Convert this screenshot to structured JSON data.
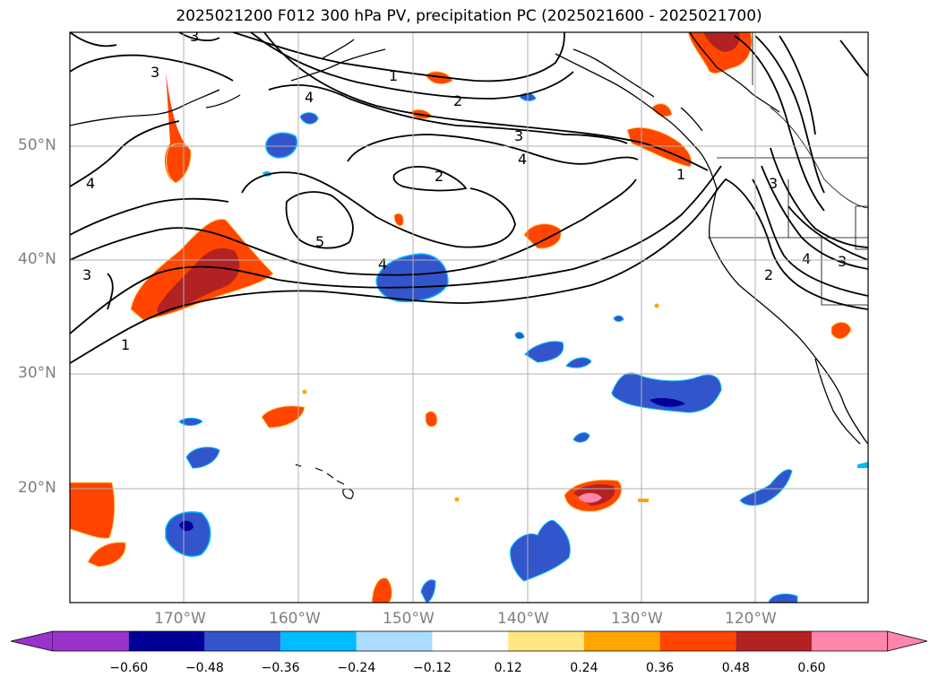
{
  "title": "2025021200 F012 300 hPa PV, precipitation PC (2025021600 - 2025021700)",
  "lat_labels": [
    "50°N",
    "40°N",
    "30°N",
    "20°N"
  ],
  "lon_labels": [
    "170°W",
    "160°W",
    "150°W",
    "140°W",
    "130°W",
    "120°W"
  ],
  "contour_labels": [
    "1",
    "2",
    "3",
    "4",
    "5"
  ],
  "colorbar": {
    "ticks": [
      "−0.60",
      "−0.48",
      "−0.36",
      "−0.24",
      "−0.12",
      "0.12",
      "0.24",
      "0.36",
      "0.48",
      "0.60"
    ],
    "colors": [
      "#9933cc",
      "#000099",
      "#3355cc",
      "#00bbff",
      "#aaddff",
      "#ffffff",
      "#ffe680",
      "#ffa500",
      "#ff4500",
      "#b22222",
      "#ff85aa"
    ]
  }
}
